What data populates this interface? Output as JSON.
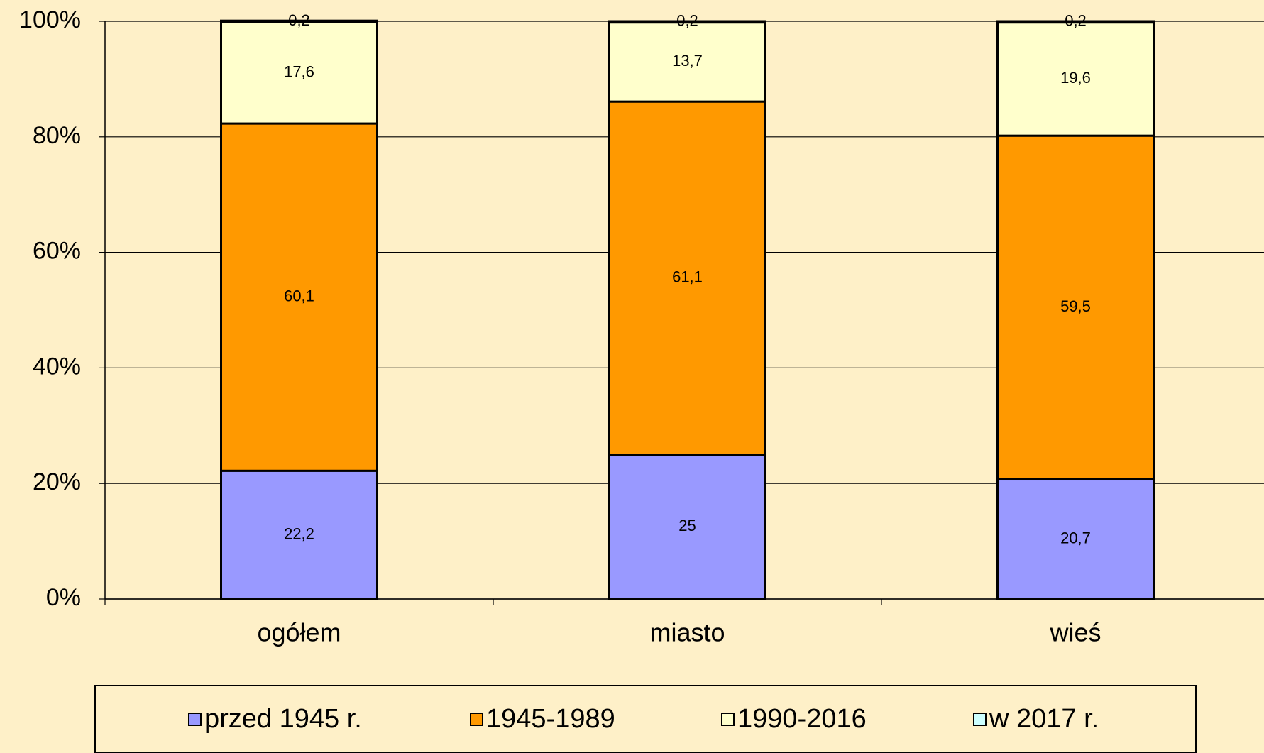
{
  "chart_data": {
    "type": "stacked_bar",
    "categories": [
      "ogółem",
      "miasto",
      "wieś"
    ],
    "series": [
      {
        "name": "przed 1945 r.",
        "color": "#9999FF",
        "values": [
          22.2,
          25,
          20.7
        ],
        "value_labels": [
          "22,2",
          "25",
          "20,7"
        ]
      },
      {
        "name": "1945-1989",
        "color": "#FF9900",
        "values": [
          60.1,
          61.1,
          59.5
        ],
        "value_labels": [
          "60,1",
          "61,1",
          "59,5"
        ]
      },
      {
        "name": "1990-2016",
        "color": "#FFFFCC",
        "values": [
          17.6,
          13.7,
          19.6
        ],
        "value_labels": [
          "17,6",
          "13,7",
          "19,6"
        ]
      },
      {
        "name": "w 2017 r.",
        "color": "#CCFFFF",
        "values": [
          0.2,
          0.2,
          0.2
        ],
        "value_labels": [
          "0,2",
          "0,2",
          "0,2"
        ]
      }
    ],
    "ylim": [
      0,
      100
    ],
    "yticks": [
      {
        "value": 0,
        "label": "0%"
      },
      {
        "value": 20,
        "label": "20%"
      },
      {
        "value": 40,
        "label": "40%"
      },
      {
        "value": 60,
        "label": "60%"
      },
      {
        "value": 80,
        "label": "80%"
      },
      {
        "value": 100,
        "label": "100%"
      }
    ],
    "grid": true,
    "legend": "bottom"
  }
}
